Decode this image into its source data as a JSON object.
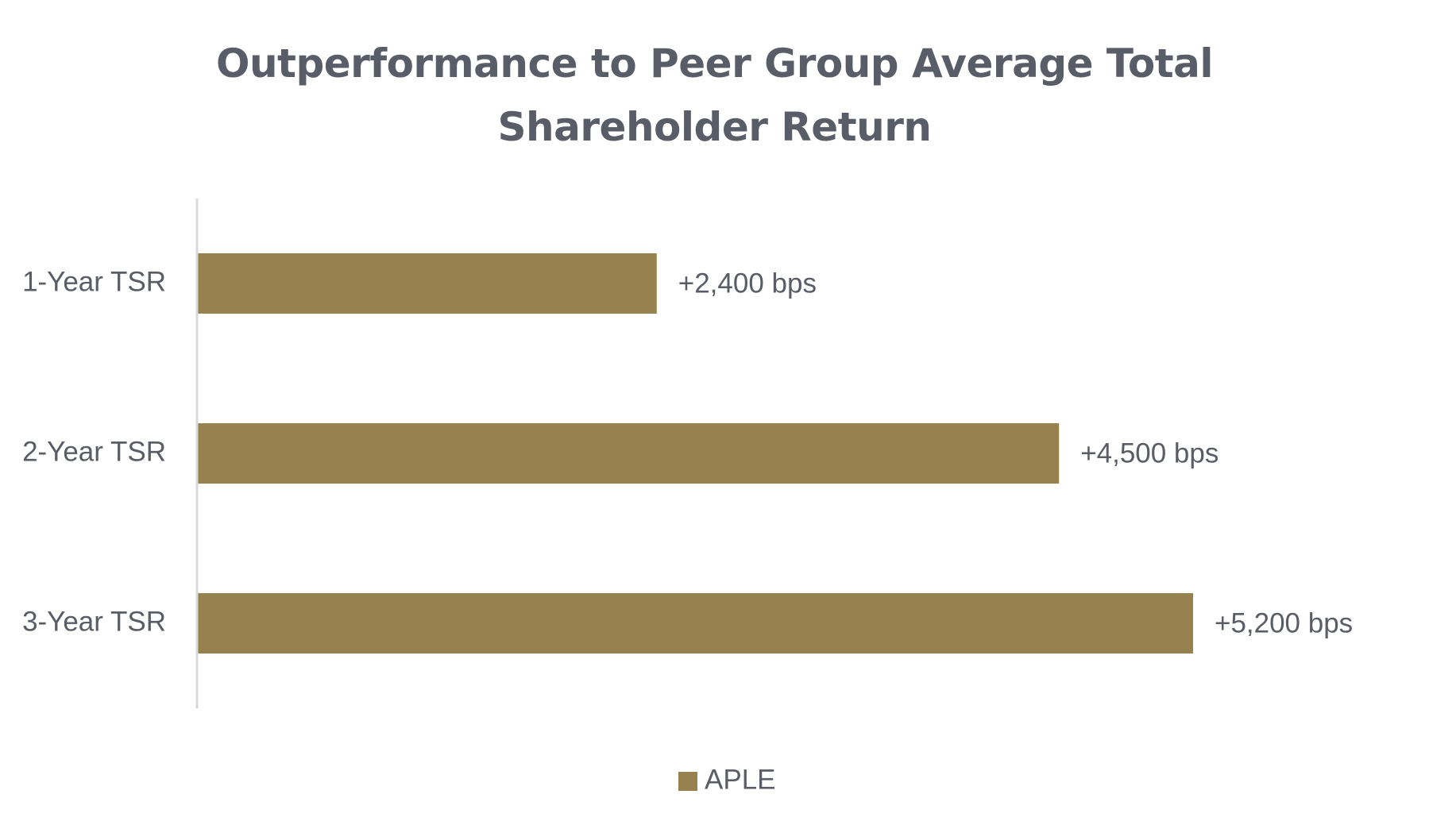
{
  "chart_data": {
    "type": "bar",
    "orientation": "horizontal",
    "title_lines": [
      "Outperformance to Peer Group Average Total",
      "Shareholder Return"
    ],
    "categories": [
      "1-Year TSR",
      "2-Year TSR",
      "3-Year TSR"
    ],
    "series": [
      {
        "name": "APLE",
        "values": [
          2400,
          4500,
          5200
        ],
        "labels": [
          "+2,400 bps",
          "+4,500 bps",
          "+5,200 bps"
        ],
        "color": "#97814f"
      }
    ],
    "xlabel": "",
    "ylabel": "",
    "xlim": [
      0,
      5200
    ],
    "grid": false,
    "legend": "bottom",
    "axis_color": "#d9d9d9"
  }
}
